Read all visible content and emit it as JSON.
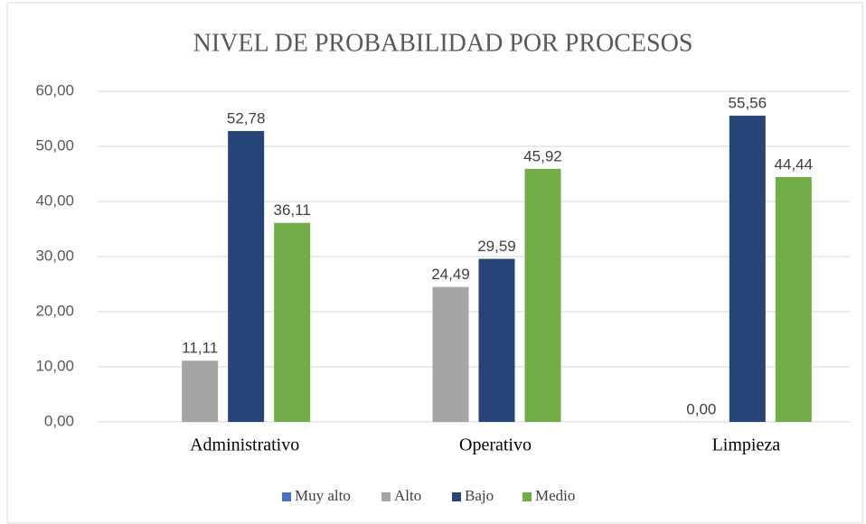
{
  "chart_data": {
    "type": "bar",
    "title": "NIVEL DE PROBABILIDAD POR PROCESOS",
    "categories": [
      "Administrativo",
      "Operativo",
      "Limpieza"
    ],
    "series": [
      {
        "name": "Muy alto",
        "color": "#4472c4",
        "values": [
          null,
          null,
          null
        ],
        "value_labels": [
          null,
          null,
          null
        ]
      },
      {
        "name": "Alto",
        "color": "#a5a5a5",
        "values": [
          11.11,
          24.49,
          0
        ],
        "value_labels": [
          "11,11",
          "24,49",
          "0,00"
        ]
      },
      {
        "name": "Bajo",
        "color": "#264478",
        "values": [
          52.78,
          29.59,
          55.56
        ],
        "value_labels": [
          "52,78",
          "29,59",
          "55,56"
        ]
      },
      {
        "name": "Medio",
        "color": "#70ad47",
        "values": [
          36.11,
          45.92,
          44.44
        ],
        "value_labels": [
          "36,11",
          "45,92",
          "44,44"
        ]
      }
    ],
    "ylim": [
      0,
      60
    ],
    "yticks": [
      {
        "value": 0,
        "label": "0,00"
      },
      {
        "value": 10,
        "label": "10,00"
      },
      {
        "value": 20,
        "label": "20,00"
      },
      {
        "value": 30,
        "label": "30,00"
      },
      {
        "value": 40,
        "label": "40,00"
      },
      {
        "value": 50,
        "label": "50,00"
      },
      {
        "value": 60,
        "label": "60,00"
      }
    ],
    "grid": true,
    "legend": "bottom"
  }
}
